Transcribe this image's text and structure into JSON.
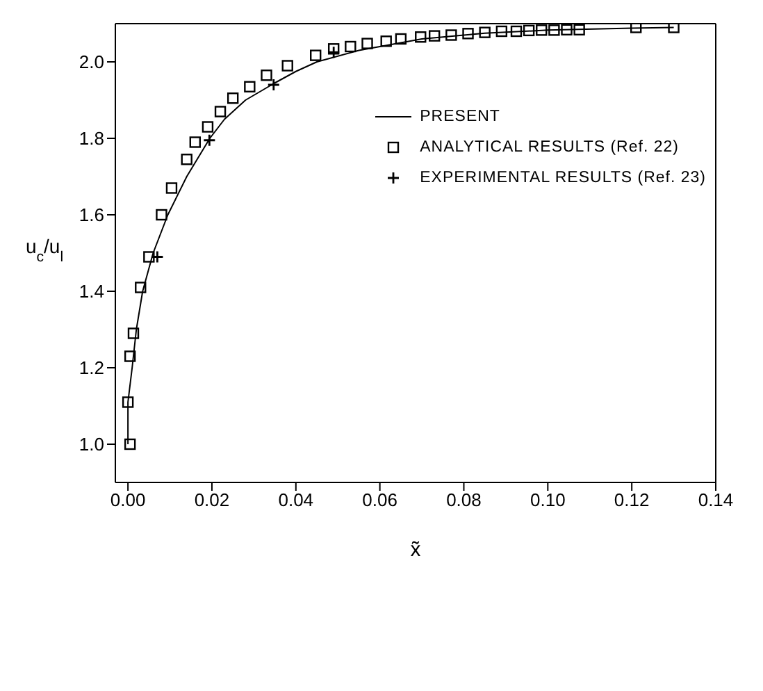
{
  "chart_data": {
    "type": "scatter",
    "xlabel": "x̃",
    "ylabel": "u$_{c}$/u$_{l}$",
    "xlim": [
      -0.003,
      0.14
    ],
    "ylim": [
      0.9,
      2.1
    ],
    "xticks": [
      {
        "value": 0,
        "label": "0.00"
      },
      {
        "value": 0.02,
        "label": "0.02"
      },
      {
        "value": 0.04,
        "label": "0.04"
      },
      {
        "value": 0.06,
        "label": "0.06"
      },
      {
        "value": 0.08,
        "label": "0.08"
      },
      {
        "value": 0.1,
        "label": "0.10"
      },
      {
        "value": 0.12,
        "label": "0.12"
      },
      {
        "value": 0.14,
        "label": "0.14"
      }
    ],
    "yticks": [
      {
        "value": 1,
        "label": "1.0"
      },
      {
        "value": 1.2,
        "label": "1.2"
      },
      {
        "value": 1.4,
        "label": "1.4"
      },
      {
        "value": 1.6,
        "label": "1.6"
      },
      {
        "value": 1.8,
        "label": "1.8"
      },
      {
        "value": 2,
        "label": "2.0"
      }
    ],
    "legend": "right",
    "series": [
      {
        "name": "PRESENT",
        "type": "line",
        "marker": "none",
        "line_style": "solid",
        "color": "#000000",
        "x": [
          0,
          0,
          0.001,
          0.002,
          0.0035,
          0.006,
          0.0095,
          0.014,
          0.0195,
          0.023,
          0.028,
          0.035,
          0.04,
          0.045,
          0.055,
          0.07,
          0.085,
          0.1,
          0.12,
          0.13
        ],
        "values": [
          1.0,
          1.11,
          1.2,
          1.3,
          1.4,
          1.5,
          1.6,
          1.7,
          1.8,
          1.85,
          1.9,
          1.945,
          1.975,
          2.0,
          2.03,
          2.06,
          2.075,
          2.083,
          2.088,
          2.09
        ]
      },
      {
        "name": "ANALYTICAL RESULTS (Ref. 22)",
        "marker": "square",
        "color": "#000000",
        "x": [
          0.0005,
          0,
          0.0005,
          0.0013,
          0.003,
          0.005,
          0.008,
          0.0104,
          0.014,
          0.016,
          0.019,
          0.022,
          0.025,
          0.029,
          0.033,
          0.038,
          0.0447,
          0.049,
          0.053,
          0.057,
          0.0615,
          0.065,
          0.0697,
          0.073,
          0.077,
          0.081,
          0.085,
          0.089,
          0.0925,
          0.0955,
          0.0985,
          0.1015,
          0.1045,
          0.1075,
          0.121,
          0.13
        ],
        "values": [
          1.0,
          1.11,
          1.23,
          1.29,
          1.41,
          1.49,
          1.6,
          1.67,
          1.745,
          1.79,
          1.83,
          1.87,
          1.905,
          1.935,
          1.965,
          1.99,
          2.017,
          2.034,
          2.04,
          2.048,
          2.054,
          2.06,
          2.065,
          2.068,
          2.07,
          2.074,
          2.077,
          2.08,
          2.08,
          2.082,
          2.083,
          2.083,
          2.084,
          2.084,
          2.09,
          2.09
        ]
      },
      {
        "name": "EXPERIMENTAL RESULTS (Ref. 23)",
        "marker": "cross",
        "color": "#000000",
        "x": [
          0.007,
          0.0194,
          0.0347,
          0.049
        ],
        "values": [
          1.49,
          1.795,
          1.94,
          2.025
        ]
      }
    ]
  }
}
